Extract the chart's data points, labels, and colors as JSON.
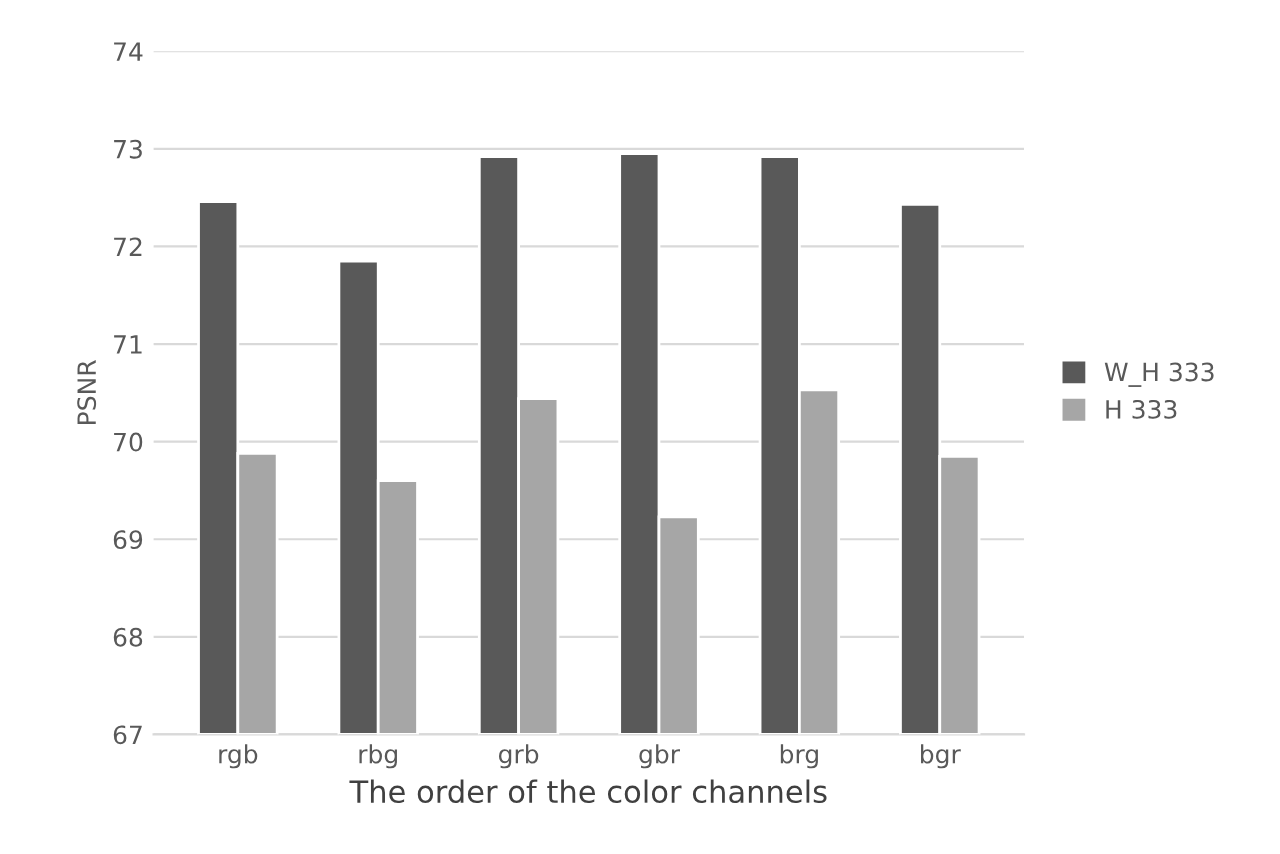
{
  "chart_data": {
    "type": "bar",
    "xlabel": "The order of the color channels",
    "ylabel": "PSNR",
    "categories": [
      "rgb",
      "rbg",
      "grb",
      "gbr",
      "brg",
      "bgr"
    ],
    "series": [
      {
        "name": "W_H 333",
        "color": "#595959",
        "values": [
          72.46,
          71.85,
          72.92,
          72.95,
          72.92,
          72.43
        ]
      },
      {
        "name": "H 333",
        "color": "#a6a6a6",
        "values": [
          69.88,
          69.6,
          70.44,
          69.23,
          70.53,
          69.85
        ]
      }
    ],
    "ylim": [
      67,
      74
    ],
    "yticks": [
      67,
      68,
      69,
      70,
      71,
      72,
      73,
      74
    ],
    "grid": "y",
    "legend": "right"
  }
}
